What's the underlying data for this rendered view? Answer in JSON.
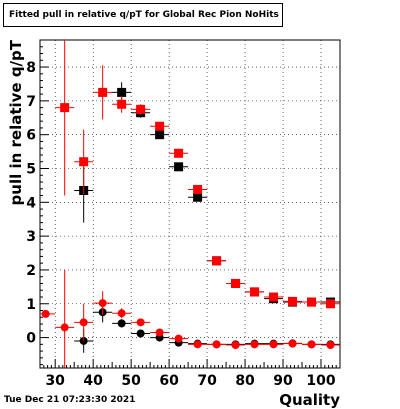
{
  "chart_data": {
    "type": "scatter",
    "title": "Fitted pull in relative q/pT  for Global Rec Pion NoHits",
    "xlabel": "Quality",
    "ylabel": "pull in relative q/pT",
    "xlim": [
      26,
      105
    ],
    "ylim": [
      -0.9,
      8.8
    ],
    "xticks": [
      30,
      40,
      50,
      60,
      70,
      80,
      90,
      100
    ],
    "yticks": [
      0,
      1,
      2,
      3,
      4,
      5,
      6,
      7,
      8
    ],
    "grid": true,
    "series": [
      {
        "marker": "square",
        "color": "#000000",
        "points": [
          {
            "x": 37.5,
            "y": 4.35,
            "err": 0.95
          },
          {
            "x": 47.5,
            "y": 7.25,
            "err": 0.3
          },
          {
            "x": 52.5,
            "y": 6.65,
            "err": 0.15
          },
          {
            "x": 57.5,
            "y": 6.0,
            "err": 0.1
          },
          {
            "x": 62.5,
            "y": 5.05,
            "err": 0.08
          },
          {
            "x": 67.5,
            "y": 4.15,
            "err": 0.07
          },
          {
            "x": 72.5,
            "y": 2.27,
            "err": 0.05
          },
          {
            "x": 77.5,
            "y": 1.6,
            "err": 0.05
          },
          {
            "x": 82.5,
            "y": 1.35,
            "err": 0.04
          },
          {
            "x": 87.5,
            "y": 1.15,
            "err": 0.04
          },
          {
            "x": 92.5,
            "y": 1.05,
            "err": 0.04
          },
          {
            "x": 97.5,
            "y": 1.05,
            "err": 0.04
          },
          {
            "x": 102.5,
            "y": 1.05,
            "err": 0.04
          }
        ]
      },
      {
        "marker": "square",
        "color": "#ff0000",
        "points": [
          {
            "x": 32.5,
            "y": 6.8,
            "err": 2.6
          },
          {
            "x": 37.5,
            "y": 5.2,
            "err": 0.95
          },
          {
            "x": 42.5,
            "y": 7.25,
            "err": 0.8
          },
          {
            "x": 47.5,
            "y": 6.9,
            "err": 0.25
          },
          {
            "x": 52.5,
            "y": 6.75,
            "err": 0.15
          },
          {
            "x": 57.5,
            "y": 6.25,
            "err": 0.1
          },
          {
            "x": 62.5,
            "y": 5.45,
            "err": 0.08
          },
          {
            "x": 67.5,
            "y": 4.38,
            "err": 0.07
          },
          {
            "x": 72.5,
            "y": 2.27,
            "err": 0.05
          },
          {
            "x": 77.5,
            "y": 1.6,
            "err": 0.05
          },
          {
            "x": 82.5,
            "y": 1.35,
            "err": 0.04
          },
          {
            "x": 87.5,
            "y": 1.2,
            "err": 0.04
          },
          {
            "x": 92.5,
            "y": 1.07,
            "err": 0.04
          },
          {
            "x": 97.5,
            "y": 1.05,
            "err": 0.04
          },
          {
            "x": 102.5,
            "y": 1.0,
            "err": 0.04
          }
        ]
      },
      {
        "marker": "circle",
        "color": "#000000",
        "points": [
          {
            "x": 37.5,
            "y": -0.1,
            "err": 0.35
          },
          {
            "x": 42.5,
            "y": 0.75,
            "err": 0.3
          },
          {
            "x": 47.5,
            "y": 0.42,
            "err": 0.12
          },
          {
            "x": 52.5,
            "y": 0.12,
            "err": 0.05
          },
          {
            "x": 57.5,
            "y": 0.0,
            "err": 0.04
          },
          {
            "x": 62.5,
            "y": -0.15,
            "err": 0.03
          },
          {
            "x": 67.5,
            "y": -0.18,
            "err": 0.03
          },
          {
            "x": 72.5,
            "y": -0.2,
            "err": 0.03
          },
          {
            "x": 77.5,
            "y": -0.2,
            "err": 0.03
          },
          {
            "x": 82.5,
            "y": -0.18,
            "err": 0.03
          },
          {
            "x": 87.5,
            "y": -0.18,
            "err": 0.03
          },
          {
            "x": 92.5,
            "y": -0.17,
            "err": 0.03
          },
          {
            "x": 97.5,
            "y": -0.2,
            "err": 0.03
          },
          {
            "x": 102.5,
            "y": -0.2,
            "err": 0.03
          }
        ]
      },
      {
        "marker": "circle",
        "color": "#ff0000",
        "points": [
          {
            "x": 27.5,
            "y": 0.7,
            "err": 0.0
          },
          {
            "x": 32.5,
            "y": 0.3,
            "err": 1.7
          },
          {
            "x": 37.5,
            "y": 0.45,
            "err": 0.55
          },
          {
            "x": 42.5,
            "y": 1.02,
            "err": 0.35
          },
          {
            "x": 47.5,
            "y": 0.72,
            "err": 0.15
          },
          {
            "x": 52.5,
            "y": 0.45,
            "err": 0.05
          },
          {
            "x": 57.5,
            "y": 0.15,
            "err": 0.04
          },
          {
            "x": 62.5,
            "y": -0.03,
            "err": 0.03
          },
          {
            "x": 67.5,
            "y": -0.2,
            "err": 0.03
          },
          {
            "x": 72.5,
            "y": -0.2,
            "err": 0.03
          },
          {
            "x": 77.5,
            "y": -0.22,
            "err": 0.03
          },
          {
            "x": 82.5,
            "y": -0.2,
            "err": 0.03
          },
          {
            "x": 87.5,
            "y": -0.2,
            "err": 0.03
          },
          {
            "x": 92.5,
            "y": -0.18,
            "err": 0.03
          },
          {
            "x": 97.5,
            "y": -0.2,
            "err": 0.03
          },
          {
            "x": 102.5,
            "y": -0.22,
            "err": 0.03
          }
        ]
      }
    ]
  },
  "footer": {
    "timestamp": "Tue Dec 21 07:23:30 2021"
  }
}
